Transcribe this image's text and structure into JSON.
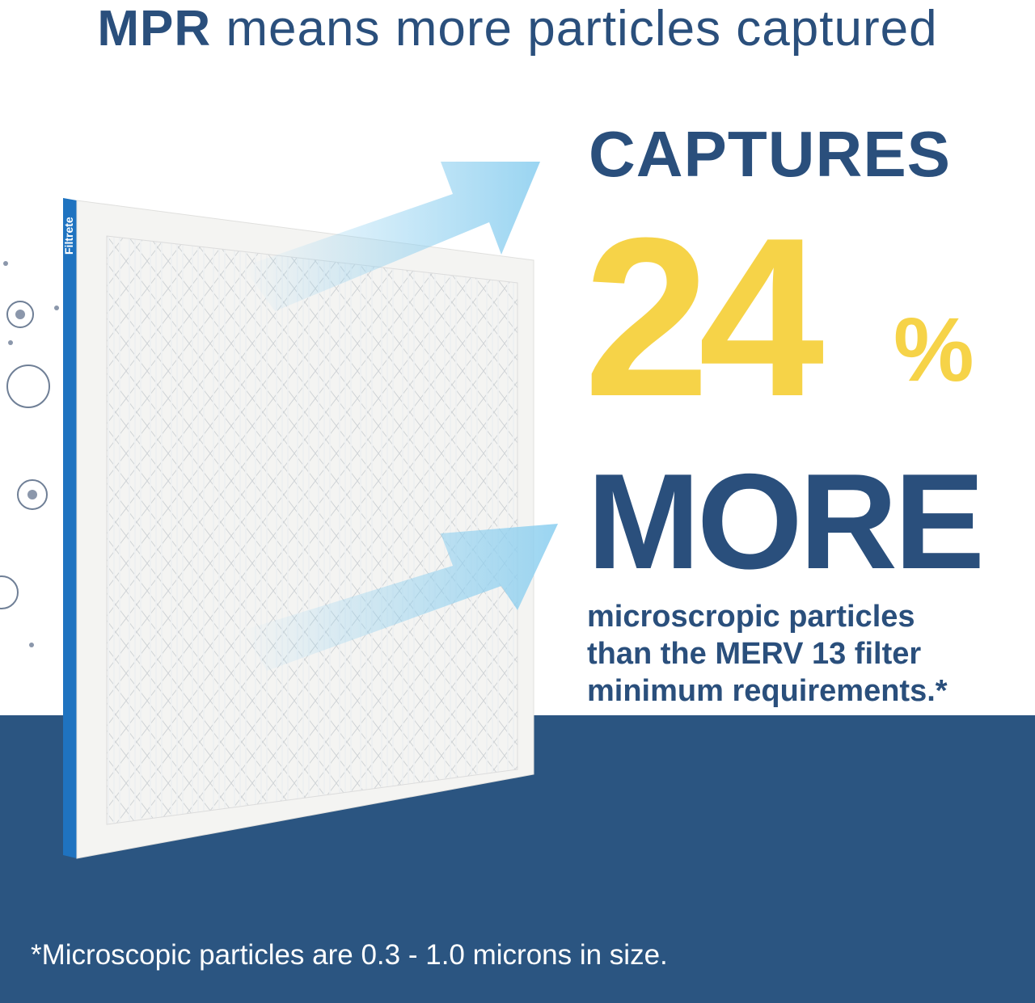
{
  "header": {
    "title_bold": "MPR",
    "title_rest": " means more particles captured"
  },
  "claim": {
    "captures": "CAPTURES",
    "number": "24",
    "percent": "%",
    "more": "MORE",
    "body_lines": [
      "microscropic particles",
      "than the MERV 13 filter",
      "minimum requirements.*"
    ]
  },
  "product": {
    "brand": "Filtrete"
  },
  "footnote": "*Microscopic particles are 0.3 - 1.0 microns in size.",
  "colors": {
    "navy": "#2a4f7c",
    "band": "#2b5581",
    "yellow": "#f6d348",
    "arrow": "#8fd0f0",
    "filter_edge": "#1f73c0"
  }
}
